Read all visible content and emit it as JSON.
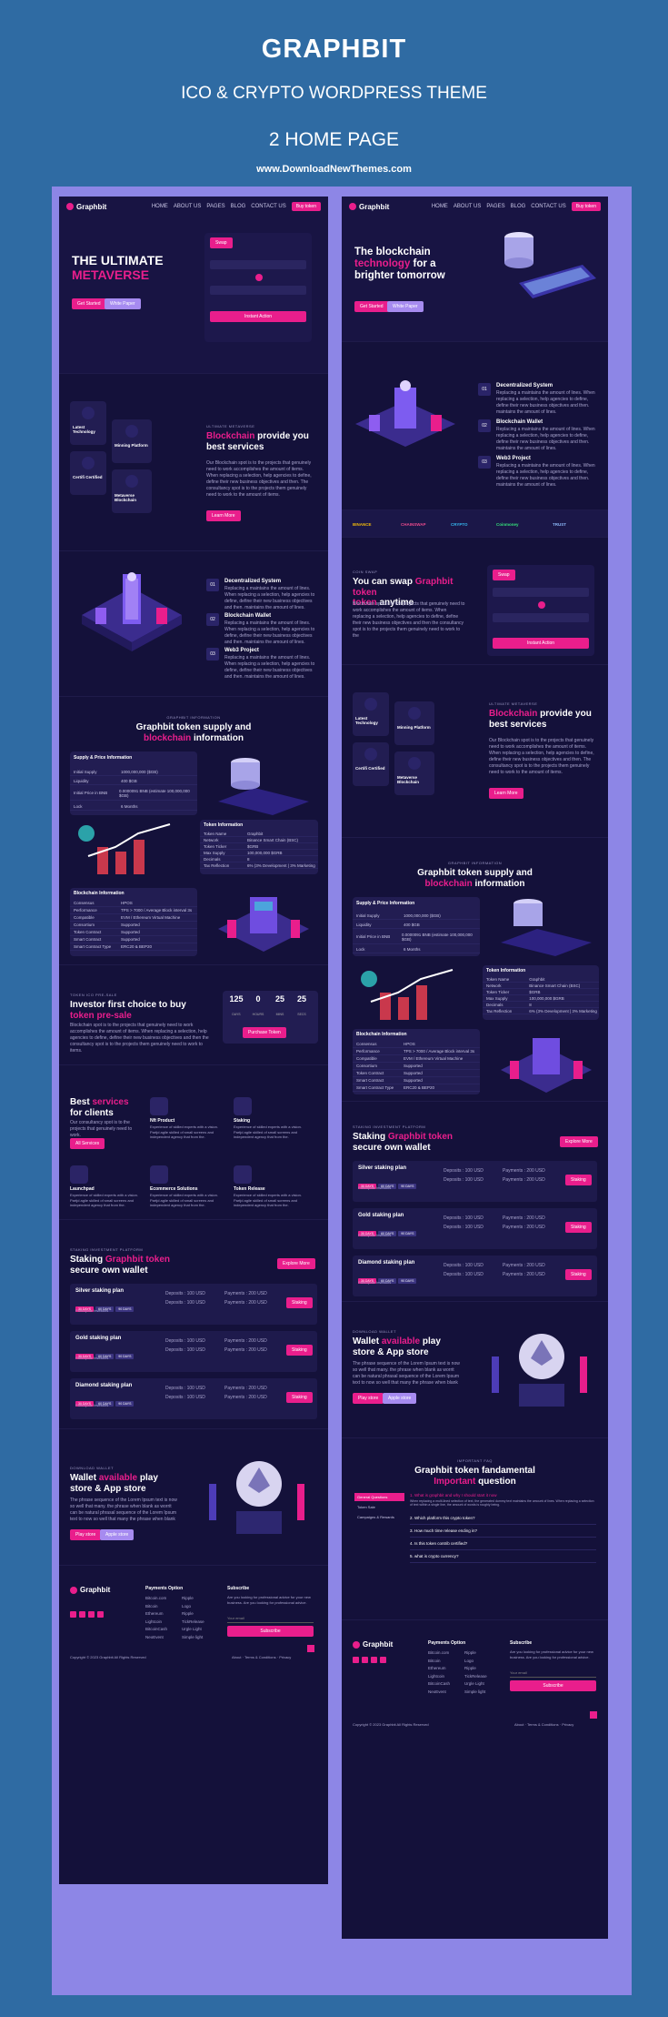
{
  "header": {
    "title": "GRAPHBIT",
    "subtitle": "ICO & CRYPTO WORDPRESS THEME",
    "pages": "2 HOME PAGE",
    "site": "www.DownloadNewThemes.com"
  },
  "nav": {
    "logo": "Graphbit",
    "links": [
      "HOME",
      "ABOUT US",
      "PAGES",
      "BLOG",
      "CONTACT US"
    ],
    "button": "Buy token"
  },
  "left": {
    "hero": {
      "title_line1": "THE ULTIMATE",
      "title_line2": "METAVERSE",
      "btn1": "Get Started",
      "btn2": "White Paper",
      "swap_label": "Swap",
      "swap_button": "Instant Action"
    },
    "services": {
      "eyebrow": "ULTIMATE METAVERSE",
      "title_a": "Blockchain",
      "title_b": "provide you best services",
      "body": "Our Blockchain spot is to the projects that genuinely need to work accomplishes the amount of items. When replacing a selection, help agencies to define, define their new business objectives and then. The consultancy spot is to the projects them genuinely need to work to the amount of items.",
      "button": "Learn More",
      "cards": [
        "Latest Technology",
        "Minning Platform",
        "Certifi Certified",
        "Metaverse Blockchain"
      ]
    },
    "steps": {
      "items": [
        {
          "n": "01",
          "t": "Decentralized System"
        },
        {
          "n": "02",
          "t": "Blockchain Wallet"
        },
        {
          "n": "03",
          "t": "Web3 Project"
        }
      ],
      "body": "Replacing a maintains the amount of lines. When replacing a selection, help agencies to define, define their new business objectives and then. maintains the amount of lines."
    },
    "supply": {
      "eyebrow": "GRAPHBIT INFORMATION",
      "title_a": "Graphbit token supply and",
      "title_b": "blockchain",
      "title_c": "information",
      "table_title": "Supply & Price Information",
      "rows": [
        [
          "Initial Supply",
          "1000,000,000 ($GB)"
        ],
        [
          "Liquidity",
          "400 $GB"
        ],
        [
          "Initial Price in BNB",
          "0.0000091 BNB (estimate 100,000,000 $GB)"
        ],
        [
          "Lock",
          "6 Months"
        ]
      ],
      "token_title": "Token Information",
      "token_rows": [
        [
          "Token Name",
          "Graphbit"
        ],
        [
          "Network",
          "Binance Smart Chain (BSC)"
        ],
        [
          "Token Ticker",
          "$GRB"
        ],
        [
          "Max Supply",
          "100,000,000 $GRB"
        ],
        [
          "Decimals",
          "8"
        ],
        [
          "Tax Reflection",
          "6% (3% Development | 3% Marketing"
        ]
      ],
      "bc_title": "Blockchain Information",
      "bc_rows": [
        [
          "Consensus",
          "HPOS"
        ],
        [
          "Performance",
          "TPS > 7000 / Average Block interval 3s"
        ],
        [
          "Compatible",
          "EVM / Ethereum Virtual Machine"
        ],
        [
          "Consortium",
          "Supported"
        ],
        [
          "Token Contract",
          "Supported"
        ],
        [
          "Smart Contract",
          "Supported"
        ],
        [
          "Smart Contract Type",
          "ERC20 & BEP20"
        ]
      ]
    },
    "presale": {
      "eyebrow": "TOKEN ICO PRE-SALE",
      "title_a": "Investor first choice to buy",
      "title_b": "token pre-sale",
      "body": "Blockchain spot is to the projects that genuinely need to work accomplishes the amount of items. When replacing a selection, help agencies to define, define their new business objectives and then the consultancy spot is to the projects them genuinely need to work to items.",
      "count": [
        {
          "v": "125",
          "l": "DAYS"
        },
        {
          "v": "0",
          "l": "HOURS"
        },
        {
          "v": "25",
          "l": "MINS"
        },
        {
          "v": "25",
          "l": "SECS"
        }
      ],
      "button": "Purchase Token"
    },
    "services2": {
      "title_a": "Best",
      "title_b": "services",
      "title_c": "for clients",
      "body": "Our consultancy spot is to the projects that genuinely need to work.",
      "button": "All Services",
      "items": [
        "Nft Product",
        "Staking",
        "Launchpad",
        "Ecommerce Solutions",
        "Token Release"
      ],
      "item_body": "Experience of skilled experts with a vision. Partjd agile skilled of small screens and independent agency that from the."
    },
    "staking": {
      "eyebrow": "STAKING INVESTMENT PLATFORM",
      "title_a": "Staking",
      "title_b": "Graphbit token",
      "title_c": "secure own wallet",
      "explore": "Explore More",
      "plans": [
        "Silver staking plan",
        "Gold staking plan",
        "Diamond staking plan"
      ],
      "tags": [
        "30 DAYS",
        "60 DAYS",
        "90 DAYS"
      ],
      "deposit": "Deposits : 100 USD",
      "payment": "Payments : 200 USD",
      "participate": "Participate Investors",
      "staking": "Staking"
    },
    "wallet": {
      "eyebrow": "DOWNLOAD WALLET",
      "title_a": "Wallet",
      "title_b": "available",
      "title_c": "play",
      "title_d": "store & App store",
      "body": "The phrase sequence of the Lorem Ipsum text is now so well that many. the phrase when blank as worrit can be natural phrasal sequence of the Lorem Ipsum text to now so well that many the phrase when blank",
      "btn1": "Play store",
      "btn2": "Apple store"
    },
    "footer": {
      "logo": "Graphbit",
      "col_title": "Payments Option",
      "col_a": [
        "Bitcoin.com",
        "Bitcoin",
        "Ethereum",
        "Lightcoin",
        "BitcoinCash",
        "NeoEvent"
      ],
      "col_b": [
        "Ripple",
        "Logo",
        "Ripple",
        "TickRelease",
        "Urgle Light",
        "Simple light"
      ],
      "sub_title": "Subscribe",
      "sub_body": "Are you looking for professional advice for your new business. Are you looking for professional advice.",
      "sub_placeholder": "Your email",
      "sub_button": "Subscribe",
      "copyright": "Copyright © 2023 Graphbit All Rights Reserved",
      "links": [
        "About",
        "Terms & Conditions",
        "Privacy"
      ]
    }
  },
  "right": {
    "hero": {
      "title_a": "The blockchain",
      "title_b": "technology",
      "title_c": "for a",
      "title_d": "brighter tomorrow",
      "btn1": "Get Started",
      "btn2": "White Paper"
    },
    "partners": [
      "BINANCE",
      "CHAINSWAP",
      "CRYPTO",
      "Coinmoney",
      "TRUST"
    ],
    "swap": {
      "eyebrow": "COIN SWAP",
      "title_a": "You can swap",
      "title_b": "Graphbit token",
      "title_c": "anytime",
      "body": "Blockchain spot is to the projects that genuinely need to work accomplishes the amount of items. When replacing a selection, help agencies to define, define their new business objectives and then the consultancy spot is to the projects them genuinely need to work to the",
      "swap_label": "Swap",
      "button": "Instant Action"
    },
    "faq": {
      "eyebrow": "IMPORTANT FAQ",
      "title_a": "Graphbit token fandamental",
      "title_b": "Important",
      "title_c": "question",
      "tabs": [
        "General Questions",
        "Token Sale",
        "Campaigns & Rewards"
      ],
      "q": [
        "1. What is graphbit and why I should start it now",
        "2. Which platform this crypto token?",
        "3. How much time release ending in?",
        "4. Is this token contrib certified?",
        "5. what is crypto currency?"
      ],
      "a": "When replacing a multi-lined selection of text, the generated dummy text maintains the amount of lines. When replacing a selection of text within a single line, the amount of words is roughly being."
    },
    "footer": {
      "copyright": "Copyright © 2023 Graphbit All Rights Reserved"
    }
  }
}
